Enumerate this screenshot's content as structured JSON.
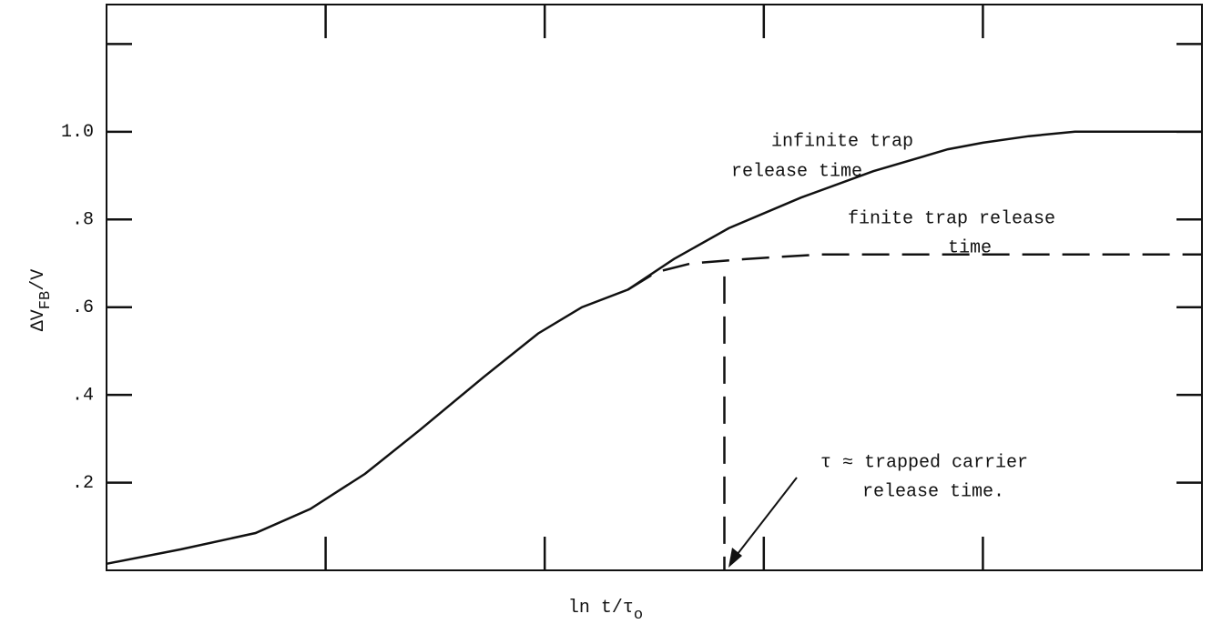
{
  "chart_data": {
    "type": "line",
    "x_label": [
      "ln t/τ",
      "o"
    ],
    "y_label": [
      "ΔV",
      "FB",
      "/V"
    ],
    "xlim": [
      0,
      5
    ],
    "ylim": [
      0,
      1.29
    ],
    "xticks": [
      {
        "value": 1,
        "label": null
      },
      {
        "value": 2,
        "label": null
      },
      {
        "value": 3,
        "label": null
      },
      {
        "value": 4,
        "label": null
      }
    ],
    "yticks": [
      {
        "value": 0.2,
        "label": ".2"
      },
      {
        "value": 0.4,
        "label": ".4"
      },
      {
        "value": 0.6,
        "label": ".6"
      },
      {
        "value": 0.8,
        "label": ".8"
      },
      {
        "value": 1.0,
        "label": "1.0"
      },
      {
        "value": 1.2,
        "label": null
      }
    ],
    "series": [
      {
        "style": "solid",
        "color": "#111111",
        "x": [
          0,
          0.34,
          0.68,
          0.93,
          1.18,
          1.43,
          1.72,
          1.97,
          2.17,
          2.38,
          2.59,
          2.84,
          3.17,
          3.5,
          3.84,
          4.0,
          4.21,
          4.42,
          5.0
        ],
        "values": [
          0.015,
          0.048,
          0.085,
          0.14,
          0.22,
          0.32,
          0.44,
          0.54,
          0.6,
          0.64,
          0.71,
          0.78,
          0.85,
          0.91,
          0.96,
          0.975,
          0.99,
          1.0,
          1.0
        ]
      },
      {
        "style": "dashed",
        "color": "#111111",
        "x": [
          2.38,
          2.51,
          2.67,
          2.92,
          3.25,
          3.67,
          5.0
        ],
        "values": [
          0.64,
          0.68,
          0.7,
          0.71,
          0.72,
          0.72,
          0.72
        ]
      },
      {
        "style": "dashed",
        "color": "#111111",
        "x": [
          2.82,
          2.82
        ],
        "values": [
          0.67,
          0
        ]
      }
    ],
    "annotations": [
      {
        "lines": [
          "infinite trap",
          "release time"
        ]
      },
      {
        "lines": [
          "finite trap release",
          "time"
        ]
      },
      {
        "lines": [
          "τ ≈ trapped carrier",
          "release time."
        ]
      }
    ]
  }
}
